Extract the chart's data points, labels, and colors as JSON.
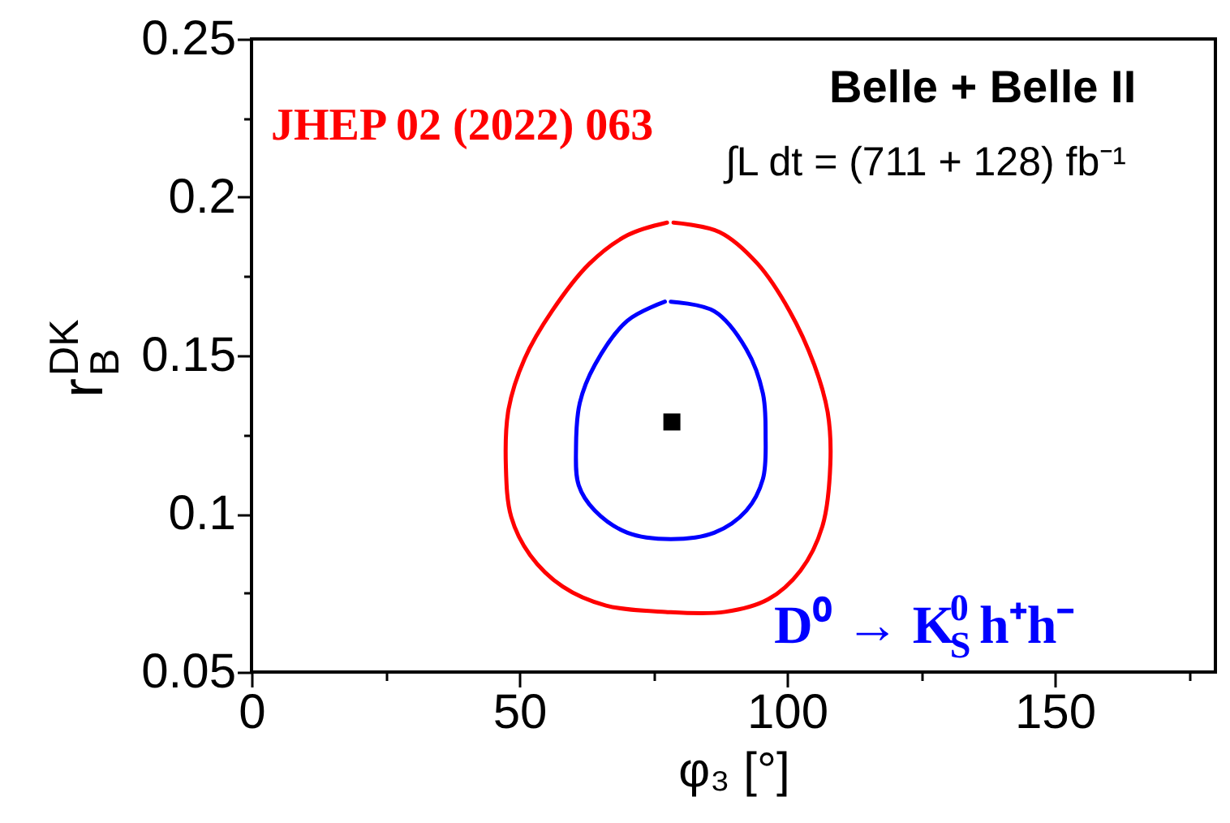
{
  "chart_data": {
    "type": "line",
    "xlabel": "φ₃ [°]",
    "ylabel": "r$_{B}$$^{DK}$",
    "annotations": [
      "Belle + Belle II",
      "∫L dt = (711 + 128) fb⁻¹",
      "JHEP 02 (2022) 063",
      "D⁰ → K$_{S}$$^{0}$h⁺h⁻"
    ],
    "xlim": [
      0,
      180
    ],
    "ylim": [
      0.05,
      0.25
    ],
    "xticks": [
      0,
      {
        "value": 25,
        "label": null
      },
      50,
      {
        "value": 75,
        "label": null
      },
      100,
      {
        "value": 125,
        "label": null
      },
      150,
      {
        "value": 175,
        "label": null
      }
    ],
    "yticks": [
      0.05,
      {
        "value": 0.075,
        "label": null
      },
      0.1,
      {
        "value": 0.125,
        "label": null
      },
      0.15,
      {
        "value": 0.175,
        "label": null
      },
      0.2,
      {
        "value": 0.225,
        "label": null
      },
      0.25
    ],
    "series": [
      {
        "color": "#ff0000",
        "x": [
          78.8,
          87.4,
          94.5,
          100.5,
          105.1,
          107.6,
          108.1,
          106.6,
          102.5,
          96.5,
          88.4,
          77.3,
          66.2,
          58.1,
          52.0,
          48.5,
          47.5,
          48.0,
          51.0,
          56.1,
          63.1,
          70.2,
          77.6
        ],
        "values": [
          0.192,
          0.189,
          0.179,
          0.164,
          0.147,
          0.132,
          0.116,
          0.096,
          0.082,
          0.073,
          0.069,
          0.069,
          0.071,
          0.077,
          0.087,
          0.099,
          0.115,
          0.133,
          0.149,
          0.164,
          0.179,
          0.188,
          0.192
        ]
      },
      {
        "color": "#0000ff",
        "x": [
          78.3,
          86.4,
          92.4,
          95.5,
          96.0,
          95.5,
          92.4,
          86.4,
          78.3,
          70.2,
          64.1,
          61.1,
          60.6,
          61.3,
          64.1,
          70.2,
          77.2
        ],
        "values": [
          0.167,
          0.164,
          0.152,
          0.138,
          0.125,
          0.111,
          0.101,
          0.094,
          0.092,
          0.094,
          0.101,
          0.109,
          0.121,
          0.135,
          0.147,
          0.161,
          0.167
        ]
      },
      {
        "type": "scatter",
        "color": "#000000",
        "marker": "square",
        "x": [
          78.5
        ],
        "values": [
          0.129
        ]
      }
    ]
  }
}
